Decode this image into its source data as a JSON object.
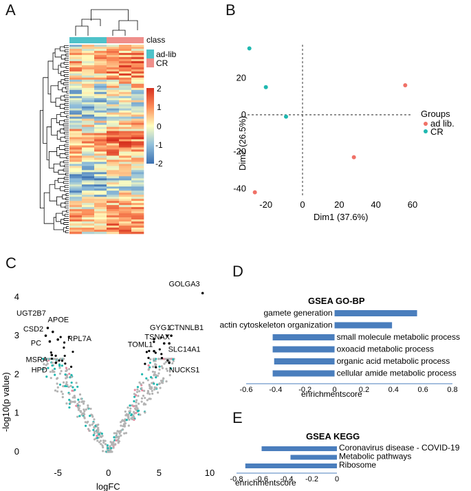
{
  "panels": {
    "A": "A",
    "B": "B",
    "C": "C",
    "D": "D",
    "E": "E"
  },
  "heatmap": {
    "class_label": "class",
    "legend": [
      {
        "name": "ad-lib",
        "color": "#4ec2c9"
      },
      {
        "name": "CR",
        "color": "#ef8f8b"
      }
    ],
    "scale_ticks": [
      "2",
      "1",
      "0",
      "-1",
      "-2"
    ],
    "colors": {
      "high": "#d7301f",
      "mid": "#ffffbf",
      "low": "#3a6fb0"
    }
  },
  "chart_data": [
    {
      "type": "scatter",
      "xlabel": "Dim1 (37.6%)",
      "ylabel": "Dim2 (26.5%)",
      "xlim": [
        -30,
        60
      ],
      "ylim": [
        -44,
        38
      ],
      "x_ticks": [
        -20,
        0,
        20,
        40,
        60
      ],
      "y_ticks": [
        20,
        0,
        -20,
        -40
      ],
      "legend_title": "Groups",
      "series": [
        {
          "name": "ad lib.",
          "color": "#f07167",
          "points": [
            [
              56,
              16
            ],
            [
              28,
              -23
            ],
            [
              -26,
              -42
            ]
          ]
        },
        {
          "name": "CR",
          "color": "#1fb8b0",
          "points": [
            [
              -29,
              36
            ],
            [
              -20,
              15
            ],
            [
              -9,
              -1
            ]
          ]
        }
      ]
    },
    {
      "type": "scatter",
      "xlabel": "logFC",
      "ylabel": "-log10(p value)",
      "xlim": [
        -8,
        10
      ],
      "ylim": [
        0,
        4.3
      ],
      "x_ticks": [
        -5,
        0,
        5,
        10
      ],
      "y_ticks": [
        0,
        1,
        2,
        3,
        4
      ],
      "labeled_genes": [
        {
          "name": "GOLGA3",
          "x": 9.3,
          "y": 4.1
        },
        {
          "name": "UGT2B7",
          "x": -6.0,
          "y": 3.2
        },
        {
          "name": "APOE",
          "x": -5.5,
          "y": 3.1
        },
        {
          "name": "CSD2",
          "x": -6.2,
          "y": 3.0
        },
        {
          "name": "RPL7A",
          "x": -5.0,
          "y": 2.9
        },
        {
          "name": "PC",
          "x": -5.8,
          "y": 2.85
        },
        {
          "name": "MSRA",
          "x": -5.6,
          "y": 2.5
        },
        {
          "name": "HPD",
          "x": -5.2,
          "y": 2.3
        },
        {
          "name": "GYG1",
          "x": 5.8,
          "y": 3.0
        },
        {
          "name": "CTNNLB1",
          "x": 6.2,
          "y": 3.0
        },
        {
          "name": "TSNAX",
          "x": 5.5,
          "y": 2.8
        },
        {
          "name": "SLC14A1",
          "x": 6.0,
          "y": 2.8
        },
        {
          "name": "TOML1",
          "x": 4.5,
          "y": 2.6
        },
        {
          "name": "NUCKS1",
          "x": 6.0,
          "y": 2.3
        }
      ]
    },
    {
      "type": "bar",
      "title": "GSEA GO-BP",
      "xlabel": "enrichmentscore",
      "xlim": [
        -0.6,
        0.8
      ],
      "x_ticks": [
        -0.6,
        -0.4,
        -0.2,
        0.0,
        0.2,
        0.4,
        0.6,
        0.8
      ],
      "categories": [
        "gamete generation",
        "actin cytoskeleton organization",
        "small molecule metabolic process",
        "oxoacid metabolic process",
        "organic acid metabolic process",
        "cellular amide metabolic process"
      ],
      "values": [
        0.56,
        0.39,
        -0.42,
        -0.42,
        -0.41,
        -0.42
      ]
    },
    {
      "type": "bar",
      "title": "GSEA KEGG",
      "xlabel": "enrichmentscore",
      "xlim": [
        -0.8,
        0
      ],
      "x_ticks": [
        -0.8,
        -0.6,
        -0.4,
        -0.2,
        0
      ],
      "categories": [
        "Coronavirus disease - COVID-19",
        "Metabolic pathways",
        "Ribosome"
      ],
      "values": [
        -0.6,
        -0.37,
        -0.73
      ]
    }
  ]
}
